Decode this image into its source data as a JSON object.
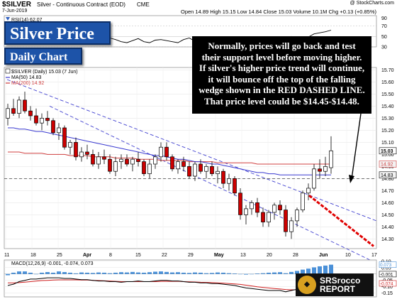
{
  "header": {
    "ticker": "$SILVER",
    "description": "Silver - Continuous Contract (EOD)",
    "exchange": "CME",
    "date": "7-Jun-2019",
    "watermark": "@ StockCharts.com",
    "quote": "Open 14.89 High 15.15 Low 14.84 Close 15.03 Volume 10.1M Chg +0.13 (+0.85%)"
  },
  "badges": {
    "title": "Silver Price",
    "subtitle": "Daily Chart"
  },
  "annotation": "Normally, prices will go back and test their support level before moving higher.  If silver's higher price trend will continue, it will bounce off the top of the falling wedge shown in the RED DASHED LINE.  That price level could be $14.45-$14.48.",
  "logo": {
    "line1": "SRSrocco",
    "line2": "REPORT"
  },
  "colors": {
    "up": "#ffffff",
    "down": "#cc0000",
    "ma50": "#3a3ad0",
    "ma200": "#d04040",
    "trend": "#4040d0",
    "redDashed": "#e00000",
    "macdHist": "#4a90d8",
    "macdLine": "#000000",
    "signal": "#d02020",
    "badge": "#1d53a8"
  },
  "chart_data": [
    {
      "type": "line",
      "title": "RSI(14) 62.07",
      "legend": "RSI(14) 62.07",
      "ylim": [
        30,
        90
      ],
      "y_ticks": [
        70,
        50,
        30
      ],
      "values": [
        45,
        52,
        55,
        48,
        50,
        46,
        42,
        40,
        38,
        44,
        41,
        39,
        36,
        42,
        48,
        45,
        40,
        50,
        47,
        44,
        40,
        38,
        42,
        46,
        40,
        38,
        43,
        44,
        42,
        40,
        38,
        44,
        47,
        41,
        38,
        42,
        44,
        40,
        38,
        42,
        45,
        41,
        38,
        36,
        42,
        46,
        43,
        40,
        44,
        47,
        50,
        47,
        46,
        49,
        55,
        57,
        59,
        62.07
      ]
    },
    {
      "type": "candlestick",
      "legend": [
        "$SILVER (Daily) 15.03 (7 Jun)",
        "MA(50) 14.83",
        "MA(200) 14.92"
      ],
      "ylim": [
        14.22,
        15.72
      ],
      "y_ticks": [
        15.7,
        15.6,
        15.5,
        15.4,
        15.3,
        15.2,
        15.1,
        15.0,
        14.9,
        14.8,
        14.7,
        14.6,
        14.5,
        14.4,
        14.3
      ],
      "price_labels": [
        "15.03",
        "14.92",
        "14.83"
      ],
      "x_ticks": [
        "11",
        "18",
        "25",
        "Apr",
        "8",
        "15",
        "22",
        "29",
        "May",
        "13",
        "20",
        "28",
        "Jun",
        "10",
        "17"
      ],
      "ohlc": [
        [
          15.3,
          15.42,
          15.24,
          15.38
        ],
        [
          15.38,
          15.46,
          15.32,
          15.34
        ],
        [
          15.34,
          15.48,
          15.3,
          15.45
        ],
        [
          15.45,
          15.52,
          15.34,
          15.36
        ],
        [
          15.36,
          15.4,
          15.28,
          15.32
        ],
        [
          15.32,
          15.38,
          15.24,
          15.26
        ],
        [
          15.26,
          15.34,
          15.2,
          15.3
        ],
        [
          15.3,
          15.36,
          15.24,
          15.28
        ],
        [
          15.28,
          15.3,
          15.16,
          15.18
        ],
        [
          15.18,
          15.26,
          15.12,
          15.22
        ],
        [
          15.22,
          15.24,
          15.04,
          15.06
        ],
        [
          15.06,
          15.12,
          15.0,
          15.1
        ],
        [
          15.1,
          15.14,
          14.95,
          14.98
        ],
        [
          14.98,
          15.06,
          14.94,
          15.02
        ],
        [
          15.02,
          15.08,
          14.96,
          15.0
        ],
        [
          15.0,
          15.04,
          14.9,
          14.92
        ],
        [
          14.92,
          15.02,
          14.88,
          14.98
        ],
        [
          14.98,
          15.04,
          14.92,
          14.96
        ],
        [
          14.96,
          15.0,
          14.84,
          14.86
        ],
        [
          14.86,
          14.98,
          14.82,
          14.94
        ],
        [
          14.94,
          15.0,
          14.88,
          14.96
        ],
        [
          14.96,
          15.0,
          14.9,
          14.92
        ],
        [
          14.92,
          14.98,
          14.86,
          14.96
        ],
        [
          14.96,
          15.02,
          14.9,
          14.94
        ],
        [
          14.94,
          14.96,
          14.82,
          14.84
        ],
        [
          14.84,
          14.96,
          14.8,
          14.92
        ],
        [
          14.92,
          15.0,
          14.88,
          14.98
        ],
        [
          14.98,
          15.1,
          14.94,
          15.06
        ],
        [
          15.06,
          15.1,
          14.95,
          14.98
        ],
        [
          14.98,
          15.0,
          14.86,
          14.88
        ],
        [
          14.88,
          14.96,
          14.84,
          14.94
        ],
        [
          14.94,
          14.98,
          14.86,
          14.9
        ],
        [
          14.9,
          14.94,
          14.8,
          14.82
        ],
        [
          14.82,
          14.94,
          14.78,
          14.92
        ],
        [
          14.92,
          14.96,
          14.84,
          14.86
        ],
        [
          14.86,
          14.92,
          14.8,
          14.9
        ],
        [
          14.9,
          14.94,
          14.82,
          14.84
        ],
        [
          14.84,
          14.9,
          14.76,
          14.86
        ],
        [
          14.86,
          14.88,
          14.72,
          14.76
        ],
        [
          14.76,
          14.84,
          14.7,
          14.8
        ],
        [
          14.8,
          14.82,
          14.66,
          14.68
        ],
        [
          14.68,
          14.72,
          14.46,
          14.5
        ],
        [
          14.5,
          14.58,
          14.42,
          14.55
        ],
        [
          14.55,
          14.62,
          14.5,
          14.6
        ],
        [
          14.6,
          14.64,
          14.48,
          14.52
        ],
        [
          14.52,
          14.56,
          14.4,
          14.44
        ],
        [
          14.44,
          14.54,
          14.4,
          14.52
        ],
        [
          14.52,
          14.6,
          14.46,
          14.58
        ],
        [
          14.58,
          14.62,
          14.5,
          14.54
        ],
        [
          14.54,
          14.58,
          14.32,
          14.36
        ],
        [
          14.36,
          14.48,
          14.3,
          14.45
        ],
        [
          14.45,
          14.56,
          14.4,
          14.54
        ],
        [
          14.54,
          14.7,
          14.52,
          14.68
        ],
        [
          14.68,
          14.76,
          14.62,
          14.72
        ],
        [
          14.72,
          14.92,
          14.7,
          14.88
        ],
        [
          14.88,
          14.96,
          14.8,
          14.86
        ],
        [
          14.86,
          14.98,
          14.82,
          14.9
        ],
        [
          14.89,
          15.15,
          14.84,
          15.03
        ]
      ],
      "ma50": [
        15.22,
        15.22,
        15.21,
        15.21,
        15.2,
        15.19,
        15.19,
        15.18,
        15.17,
        15.16,
        15.15,
        15.14,
        15.13,
        15.12,
        15.11,
        15.1,
        15.09,
        15.08,
        15.07,
        15.06,
        15.05,
        15.04,
        15.03,
        15.02,
        15.01,
        15.0,
        14.99,
        14.99,
        14.98,
        14.97,
        14.96,
        14.96,
        14.95,
        14.94,
        14.94,
        14.93,
        14.92,
        14.92,
        14.91,
        14.9,
        14.89,
        14.88,
        14.87,
        14.86,
        14.85,
        14.85,
        14.84,
        14.84,
        14.83,
        14.83,
        14.83,
        14.83,
        14.83,
        14.83,
        14.83,
        14.83,
        14.83,
        14.83
      ],
      "ma200": [
        15.02,
        15.02,
        15.02,
        15.01,
        15.01,
        15.01,
        15.01,
        15.0,
        15.0,
        15.0,
        15.0,
        14.99,
        14.99,
        14.99,
        14.99,
        14.98,
        14.98,
        14.98,
        14.98,
        14.97,
        14.97,
        14.97,
        14.97,
        14.96,
        14.96,
        14.96,
        14.96,
        14.95,
        14.95,
        14.95,
        14.95,
        14.95,
        14.94,
        14.94,
        14.94,
        14.94,
        14.94,
        14.93,
        14.93,
        14.93,
        14.93,
        14.93,
        14.93,
        14.93,
        14.92,
        14.92,
        14.92,
        14.92,
        14.92,
        14.92,
        14.92,
        14.92,
        14.92,
        14.92,
        14.92,
        14.92,
        14.92,
        14.92
      ]
    },
    {
      "type": "bar",
      "legend": [
        "MACD(12,26,9) -0.001, -0.074, 0.073"
      ],
      "ylim": [
        -0.18,
        0.11
      ],
      "y_ticks": [
        0.1,
        0.05,
        0.0,
        -0.05,
        -0.1,
        -0.15
      ],
      "price_labels": [
        "0.073",
        "-0.001",
        "-0.074"
      ],
      "histogram": [
        -0.01,
        0.01,
        0.02,
        0.02,
        0.01,
        0.0,
        0.01,
        0.015,
        0.01,
        0.02,
        0.015,
        0.01,
        0.005,
        0.012,
        0.01,
        0.008,
        0.012,
        0.01,
        0.006,
        0.01,
        0.014,
        0.012,
        0.016,
        0.012,
        0.01,
        0.014,
        0.018,
        0.02,
        0.016,
        0.012,
        0.014,
        0.01,
        0.008,
        0.012,
        0.01,
        0.006,
        0.008,
        0.012,
        0.01,
        0.006,
        0.004,
        0.0,
        -0.005,
        -0.002,
        0.004,
        0.006,
        0.01,
        0.012,
        0.014,
        0.006,
        0.016,
        0.024,
        0.034,
        0.042,
        0.052,
        0.06,
        0.066,
        0.073
      ],
      "macd": [
        -0.09,
        -0.08,
        -0.06,
        -0.05,
        -0.04,
        -0.04,
        -0.035,
        -0.03,
        -0.03,
        -0.03,
        -0.035,
        -0.035,
        -0.04,
        -0.045,
        -0.045,
        -0.05,
        -0.055,
        -0.055,
        -0.06,
        -0.06,
        -0.065,
        -0.06,
        -0.06,
        -0.055,
        -0.06,
        -0.06,
        -0.055,
        -0.05,
        -0.05,
        -0.055,
        -0.055,
        -0.06,
        -0.065,
        -0.065,
        -0.07,
        -0.07,
        -0.075,
        -0.075,
        -0.08,
        -0.085,
        -0.09,
        -0.1,
        -0.11,
        -0.115,
        -0.12,
        -0.125,
        -0.13,
        -0.13,
        -0.13,
        -0.14,
        -0.13,
        -0.12,
        -0.1,
        -0.085,
        -0.065,
        -0.045,
        -0.02,
        -0.001
      ],
      "signal": [
        -0.07,
        -0.07,
        -0.068,
        -0.064,
        -0.06,
        -0.056,
        -0.052,
        -0.05,
        -0.048,
        -0.046,
        -0.046,
        -0.046,
        -0.046,
        -0.047,
        -0.048,
        -0.05,
        -0.052,
        -0.054,
        -0.056,
        -0.058,
        -0.06,
        -0.06,
        -0.06,
        -0.06,
        -0.06,
        -0.06,
        -0.06,
        -0.058,
        -0.058,
        -0.058,
        -0.058,
        -0.06,
        -0.062,
        -0.063,
        -0.065,
        -0.066,
        -0.068,
        -0.07,
        -0.072,
        -0.075,
        -0.078,
        -0.082,
        -0.088,
        -0.094,
        -0.1,
        -0.105,
        -0.11,
        -0.114,
        -0.118,
        -0.122,
        -0.124,
        -0.124,
        -0.122,
        -0.118,
        -0.112,
        -0.104,
        -0.09,
        -0.074
      ]
    }
  ]
}
